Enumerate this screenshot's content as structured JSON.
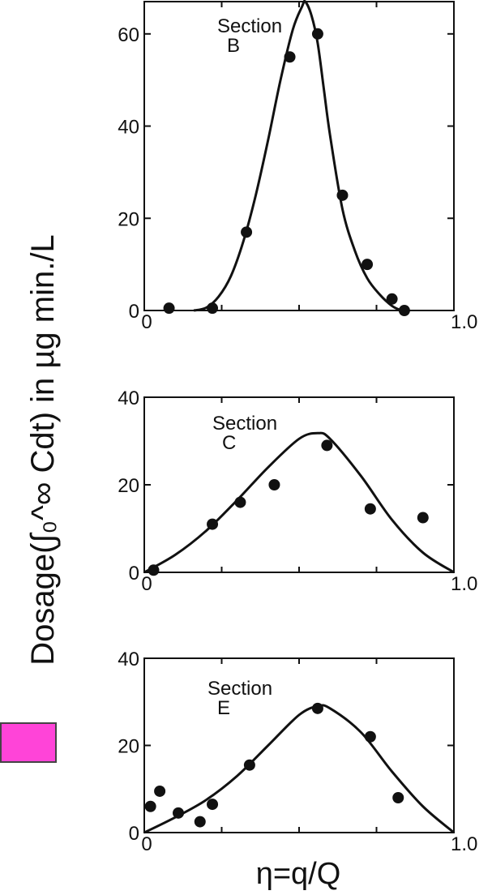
{
  "figure": {
    "y_axis_title": "Dosage(∫₀^∞ Cdt) in µg min./L",
    "x_axis_title": "η=q/Q"
  },
  "colors": {
    "marker_box": "#ff44d8",
    "ink": "#111111"
  },
  "chart_data": [
    {
      "type": "scatter",
      "panel": "Section B",
      "label_lines": [
        "Section",
        "B"
      ],
      "xlim": [
        0,
        1.0
      ],
      "ylim": [
        0,
        67
      ],
      "x_ticks": [
        0,
        1.0
      ],
      "x_tick_labels": [
        "0",
        "1.0"
      ],
      "y_ticks": [
        0,
        20,
        40,
        60
      ],
      "y_tick_labels": [
        "0",
        "20",
        "40",
        "60"
      ],
      "points": {
        "x": [
          0.08,
          0.22,
          0.33,
          0.47,
          0.56,
          0.64,
          0.72,
          0.8,
          0.84
        ],
        "y": [
          0.5,
          0.5,
          17,
          55,
          60,
          25,
          10,
          2.5,
          0
        ]
      },
      "curve": {
        "x": [
          0.16,
          0.2,
          0.24,
          0.28,
          0.32,
          0.36,
          0.4,
          0.44,
          0.48,
          0.51,
          0.52,
          0.54,
          0.56,
          0.58,
          0.6,
          0.64,
          0.68,
          0.72,
          0.76,
          0.8,
          0.83
        ],
        "y": [
          0,
          0.6,
          3,
          7.5,
          15,
          25,
          37,
          50,
          61,
          66,
          67,
          64,
          58,
          48,
          38,
          22,
          13,
          7,
          3.5,
          1,
          0
        ]
      }
    },
    {
      "type": "scatter",
      "panel": "Section C",
      "label_lines": [
        "Section",
        "C"
      ],
      "xlim": [
        0,
        1.0
      ],
      "ylim": [
        0,
        40
      ],
      "x_ticks": [
        0,
        1.0
      ],
      "x_tick_labels": [
        "0",
        "1.0"
      ],
      "y_ticks": [
        0,
        20,
        40
      ],
      "y_tick_labels": [
        "0",
        "20",
        "40"
      ],
      "points": {
        "x": [
          0.03,
          0.22,
          0.31,
          0.42,
          0.59,
          0.73,
          0.9
        ],
        "y": [
          0.5,
          11,
          16,
          20,
          29,
          14.5,
          12.5
        ]
      },
      "curve": {
        "x": [
          0.0,
          0.1,
          0.2,
          0.3,
          0.4,
          0.5,
          0.56,
          0.6,
          0.7,
          0.8,
          0.9,
          1.0
        ],
        "y": [
          0,
          4,
          9.5,
          16.5,
          24,
          30.5,
          31.8,
          30.5,
          22,
          12,
          4.5,
          0
        ]
      }
    },
    {
      "type": "scatter",
      "panel": "Section E",
      "label_lines": [
        "Section",
        "E"
      ],
      "xlim": [
        0,
        1.0
      ],
      "ylim": [
        0,
        40
      ],
      "x_ticks": [
        0,
        1.0
      ],
      "x_tick_labels": [
        "0",
        "1.0"
      ],
      "y_ticks": [
        0,
        20,
        40
      ],
      "y_tick_labels": [
        "0",
        "20",
        "40"
      ],
      "points": {
        "x": [
          0.02,
          0.05,
          0.11,
          0.18,
          0.22,
          0.34,
          0.56,
          0.73,
          0.82
        ],
        "y": [
          6,
          9.5,
          4.5,
          2.5,
          6.5,
          15.5,
          28.5,
          22,
          8
        ]
      },
      "curve": {
        "x": [
          0.0,
          0.1,
          0.2,
          0.3,
          0.4,
          0.5,
          0.56,
          0.6,
          0.7,
          0.8,
          0.9,
          1.0
        ],
        "y": [
          0,
          3.5,
          7.5,
          13,
          20,
          27,
          29,
          28.5,
          23,
          14,
          6,
          0
        ]
      }
    }
  ]
}
